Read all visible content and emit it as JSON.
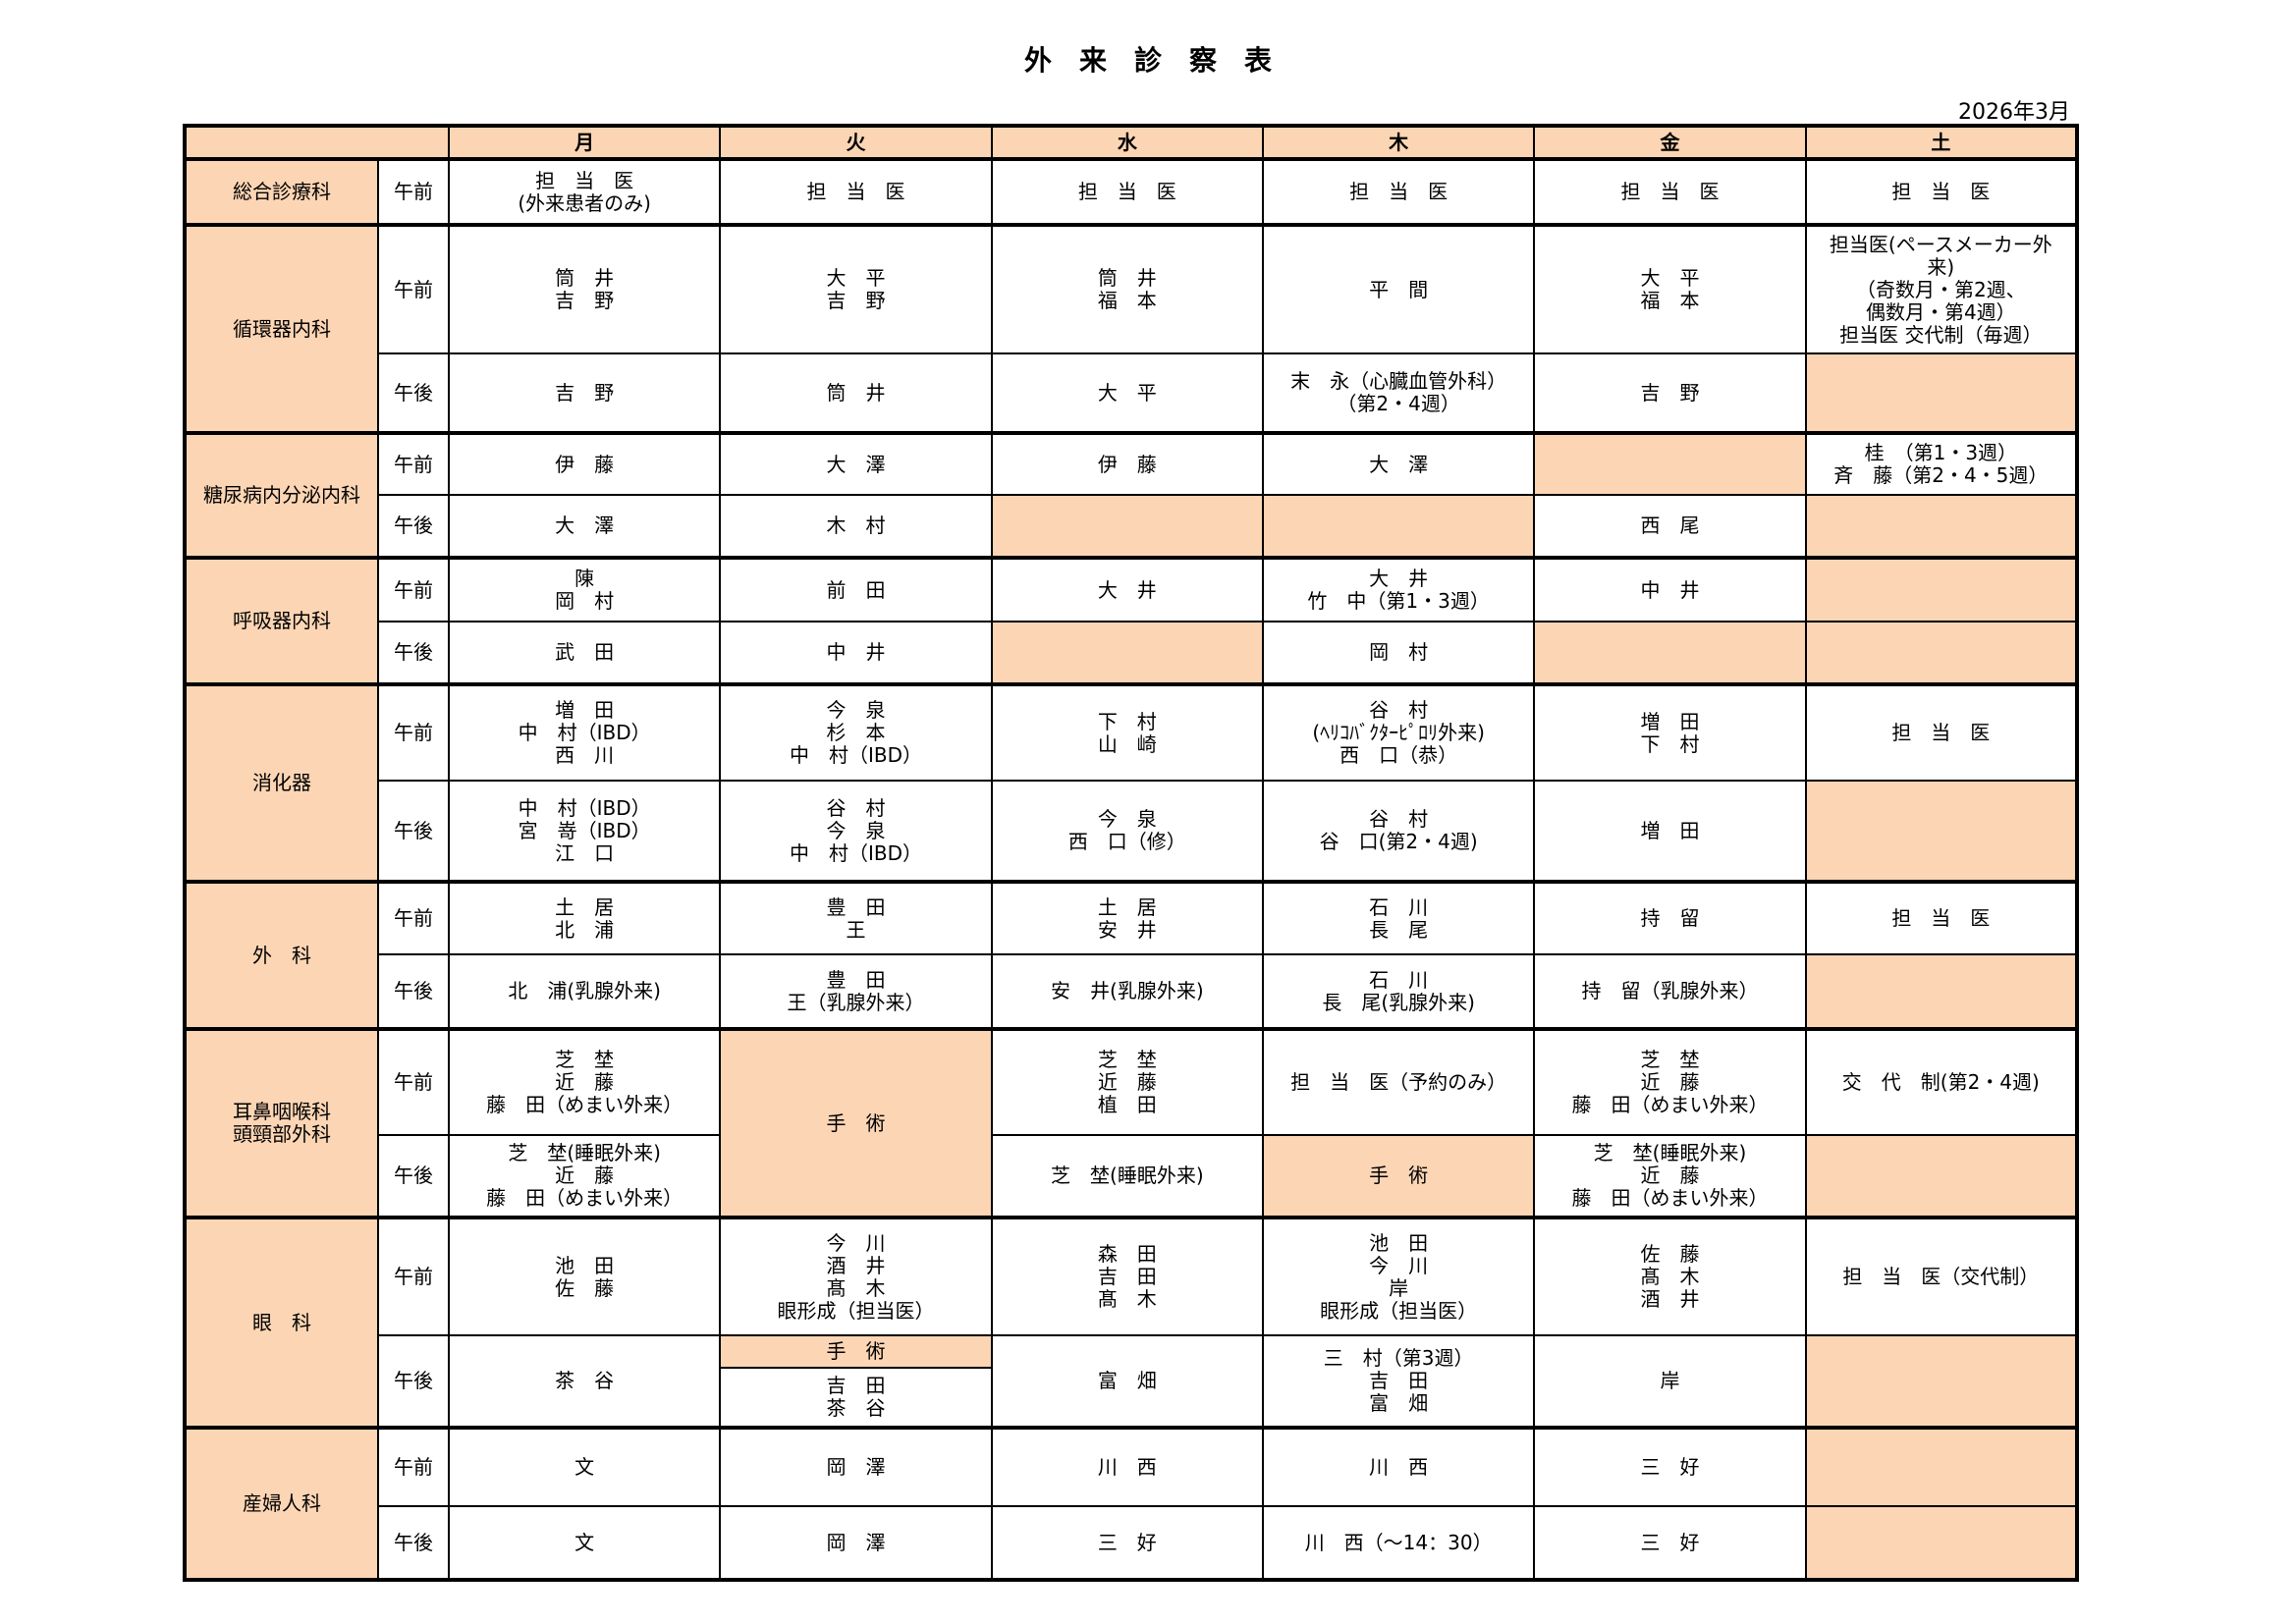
{
  "title": "外　来　診　察　表",
  "date": "2026年3月",
  "colors": {
    "shade": "#FCD5B4",
    "border": "#000000"
  },
  "days": [
    "月",
    "火",
    "水",
    "木",
    "金",
    "土"
  ],
  "departments": [
    {
      "name": [
        "総合診療科"
      ],
      "sessions": [
        {
          "label": "午前",
          "h": 1,
          "cells": [
            {
              "lines": [
                "担　当　医",
                "(外来患者のみ)"
              ]
            },
            {
              "lines": [
                "担　当　医"
              ]
            },
            {
              "lines": [
                "担　当　医"
              ]
            },
            {
              "lines": [
                "担　当　医"
              ]
            },
            {
              "lines": [
                "担　当　医"
              ]
            },
            {
              "lines": [
                "担　当　医"
              ]
            }
          ]
        }
      ]
    },
    {
      "name": [
        "循環器内科"
      ],
      "sessions": [
        {
          "label": "午前",
          "cells": [
            {
              "lines": [
                "筒　井",
                "吉　野"
              ]
            },
            {
              "lines": [
                "大　平",
                "吉　野"
              ]
            },
            {
              "lines": [
                "筒　井",
                "福　本"
              ]
            },
            {
              "lines": [
                "平　間"
              ]
            },
            {
              "lines": [
                "大　平",
                "福　本"
              ]
            },
            {
              "lines": [
                "担当医(ペースメーカー外",
                "来)",
                "（奇数月・第2週、",
                "偶数月・第4週）",
                "担当医 交代制（毎週）"
              ]
            }
          ]
        },
        {
          "label": "午後",
          "cells": [
            {
              "lines": [
                "吉　野"
              ]
            },
            {
              "lines": [
                "筒　井"
              ]
            },
            {
              "lines": [
                "大　平"
              ]
            },
            {
              "lines": [
                "末　永（心臓血管外科）",
                "（第2・4週）"
              ]
            },
            {
              "lines": [
                "吉　野"
              ]
            },
            {
              "shaded": true
            }
          ]
        }
      ]
    },
    {
      "name": [
        "糖尿病内分泌内科"
      ],
      "sessions": [
        {
          "label": "午前",
          "cells": [
            {
              "lines": [
                "伊　藤"
              ]
            },
            {
              "lines": [
                "大　澤"
              ]
            },
            {
              "lines": [
                "伊　藤"
              ]
            },
            {
              "lines": [
                "大　澤"
              ]
            },
            {
              "shaded": true
            },
            {
              "lines": [
                "桂　（第1・3週）",
                "斉　藤（第2・4・5週）"
              ]
            }
          ]
        },
        {
          "label": "午後",
          "cells": [
            {
              "lines": [
                "大　澤"
              ]
            },
            {
              "lines": [
                "木　村"
              ]
            },
            {
              "shaded": true
            },
            {
              "shaded": true
            },
            {
              "lines": [
                "西　尾"
              ]
            },
            {
              "shaded": true
            }
          ]
        }
      ]
    },
    {
      "name": [
        "呼吸器内科"
      ],
      "sessions": [
        {
          "label": "午前",
          "cells": [
            {
              "lines": [
                "陳",
                "岡　村"
              ]
            },
            {
              "lines": [
                "前　田"
              ]
            },
            {
              "lines": [
                "大　井"
              ]
            },
            {
              "lines": [
                "大　井",
                "竹　中（第1・3週）"
              ]
            },
            {
              "lines": [
                "中　井"
              ]
            },
            {
              "shaded": true
            }
          ]
        },
        {
          "label": "午後",
          "cells": [
            {
              "lines": [
                "武　田"
              ]
            },
            {
              "lines": [
                "中　井"
              ]
            },
            {
              "shaded": true
            },
            {
              "lines": [
                "岡　村"
              ]
            },
            {
              "shaded": true
            },
            {
              "shaded": true
            }
          ]
        }
      ]
    },
    {
      "name": [
        "消化器"
      ],
      "sessions": [
        {
          "label": "午前",
          "cells": [
            {
              "lines": [
                "増　田",
                "中　村（IBD）",
                "西　川"
              ]
            },
            {
              "lines": [
                "今　泉",
                "杉　本",
                "中　村（IBD）"
              ]
            },
            {
              "lines": [
                "下　村",
                "山　崎"
              ]
            },
            {
              "lines": [
                "谷　村",
                "(ﾍﾘｺﾊﾞｸﾀｰﾋﾟﾛﾘ外来)",
                "西　口（恭）"
              ]
            },
            {
              "lines": [
                "増　田",
                "下　村"
              ]
            },
            {
              "lines": [
                "担　当　医"
              ]
            }
          ]
        },
        {
          "label": "午後",
          "cells": [
            {
              "lines": [
                "中　村（IBD）",
                "宮　嵜（IBD）",
                "江　口"
              ]
            },
            {
              "lines": [
                "谷　村",
                "今　泉",
                "中　村（IBD）"
              ]
            },
            {
              "lines": [
                "今　泉",
                "西　口（修）"
              ]
            },
            {
              "lines": [
                "谷　村",
                "谷　口(第2・4週)"
              ]
            },
            {
              "lines": [
                "増　田"
              ]
            },
            {
              "shaded": true
            }
          ]
        }
      ]
    },
    {
      "name": [
        "外　科"
      ],
      "sessions": [
        {
          "label": "午前",
          "cells": [
            {
              "lines": [
                "土　居",
                "北　浦"
              ]
            },
            {
              "lines": [
                "豊　田",
                "王"
              ]
            },
            {
              "lines": [
                "土　居",
                "安　井"
              ]
            },
            {
              "lines": [
                "石　川",
                "長　尾"
              ]
            },
            {
              "lines": [
                "持　留"
              ]
            },
            {
              "lines": [
                "担　当　医"
              ]
            }
          ]
        },
        {
          "label": "午後",
          "cells": [
            {
              "lines": [
                "北　浦(乳腺外来)"
              ]
            },
            {
              "lines": [
                "豊　田",
                "王（乳腺外来）"
              ]
            },
            {
              "lines": [
                "安　井(乳腺外来)"
              ]
            },
            {
              "lines": [
                "石　川",
                "長　尾(乳腺外来)"
              ]
            },
            {
              "lines": [
                "持　留（乳腺外来）"
              ]
            },
            {
              "shaded": true
            }
          ]
        }
      ]
    },
    {
      "name": [
        "耳鼻咽喉科",
        "頭頸部外科"
      ],
      "sessions": [
        {
          "label": "午前",
          "cells": [
            {
              "lines": [
                "芝　埜",
                "近　藤",
                "藤　田（めまい外来）"
              ]
            },
            {
              "lines": [
                "手　術"
              ],
              "shaded": true,
              "span": 2
            },
            {
              "lines": [
                "芝　埜",
                "近　藤",
                "植　田"
              ]
            },
            {
              "lines": [
                "担　当　医（予約のみ）"
              ]
            },
            {
              "lines": [
                "芝　埜",
                "近　藤",
                "藤　田（めまい外来）"
              ]
            },
            {
              "lines": [
                "交　代　制(第2・4週)"
              ]
            }
          ]
        },
        {
          "label": "午後",
          "cells": [
            {
              "lines": [
                "芝　埜(睡眠外来)",
                "近　藤",
                "藤　田（めまい外来）"
              ]
            },
            null,
            {
              "lines": [
                "芝　埜(睡眠外来)"
              ]
            },
            {
              "lines": [
                "手　術"
              ],
              "shaded": true
            },
            {
              "lines": [
                "芝　埜(睡眠外来)",
                "近　藤",
                "藤　田（めまい外来）"
              ]
            },
            {
              "shaded": true
            }
          ]
        }
      ]
    },
    {
      "name": [
        "眼　科"
      ],
      "sessions": [
        {
          "label": "午前",
          "cells": [
            {
              "lines": [
                "池　田",
                "佐　藤"
              ]
            },
            {
              "lines": [
                "今　川",
                "酒　井",
                "髙　木",
                "眼形成（担当医）"
              ]
            },
            {
              "lines": [
                "森　田",
                "吉　田",
                "髙　木"
              ]
            },
            {
              "lines": [
                "池　田",
                "今　川",
                "岸",
                "眼形成（担当医）"
              ]
            },
            {
              "lines": [
                "佐　藤",
                "髙　木",
                "酒　井"
              ]
            },
            {
              "lines": [
                "担　当　医（交代制）"
              ]
            }
          ]
        },
        {
          "label": "午後",
          "cells": [
            {
              "lines": [
                "茶　谷"
              ]
            },
            {
              "parts": [
                {
                  "lines": [
                    "手　術"
                  ],
                  "shaded": true
                },
                {
                  "lines": [
                    "吉　田",
                    "茶　谷"
                  ]
                }
              ]
            },
            {
              "lines": [
                "富　畑"
              ]
            },
            {
              "lines": [
                "三　村（第3週）",
                "吉　田",
                "富　畑"
              ]
            },
            {
              "lines": [
                "岸"
              ]
            },
            {
              "shaded": true
            }
          ]
        }
      ]
    },
    {
      "name": [
        "産婦人科"
      ],
      "sessions": [
        {
          "label": "午前",
          "cells": [
            {
              "lines": [
                "文"
              ]
            },
            {
              "lines": [
                "岡　澤"
              ]
            },
            {
              "lines": [
                "川　西"
              ]
            },
            {
              "lines": [
                "川　西"
              ]
            },
            {
              "lines": [
                "三　好"
              ]
            },
            {
              "shaded": true
            }
          ]
        },
        {
          "label": "午後",
          "cells": [
            {
              "lines": [
                "文"
              ]
            },
            {
              "lines": [
                "岡　澤"
              ]
            },
            {
              "lines": [
                "三　好"
              ]
            },
            {
              "lines": [
                "川　西（～14：30）"
              ]
            },
            {
              "lines": [
                "三　好"
              ]
            },
            {
              "shaded": true
            }
          ]
        }
      ]
    }
  ]
}
